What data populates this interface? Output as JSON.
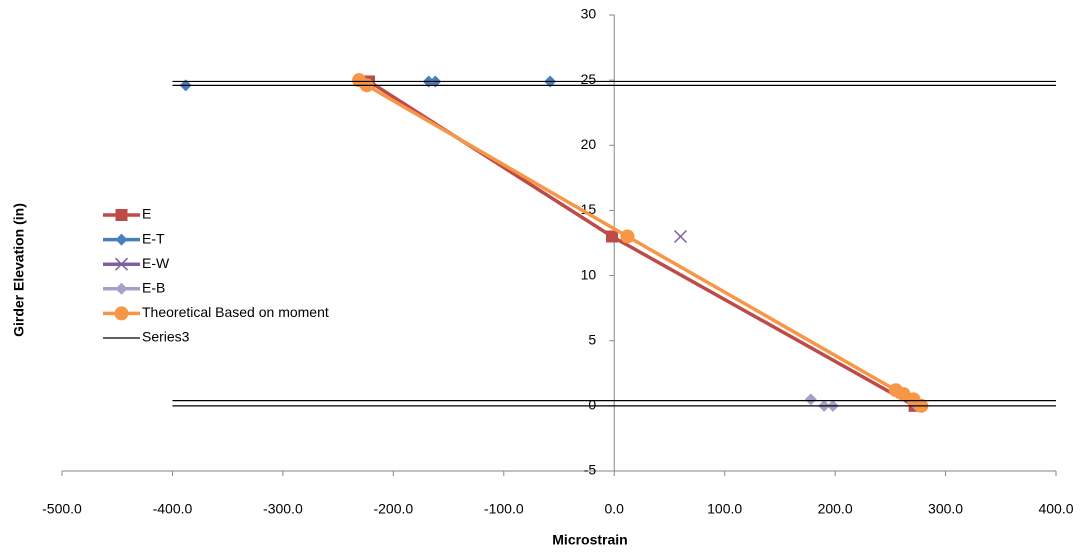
{
  "chart_data": {
    "type": "scatter",
    "x_label": "Microstrain",
    "y_label": "Girder Elevation (in)",
    "xlim": [
      -500,
      400
    ],
    "xticks": [
      {
        "value": -500,
        "label": "-500.0"
      },
      {
        "value": -400,
        "label": "-400.0"
      },
      {
        "value": -300,
        "label": "-300.0"
      },
      {
        "value": -200,
        "label": "-200.0"
      },
      {
        "value": -100,
        "label": "-100.0"
      },
      {
        "value": 0,
        "label": "0.0"
      },
      {
        "value": 100,
        "label": "100.0"
      },
      {
        "value": 200,
        "label": "200.0"
      },
      {
        "value": 300,
        "label": "300.0"
      },
      {
        "value": 400,
        "label": "400.0"
      }
    ],
    "ylim": [
      -5,
      30
    ],
    "yticks": [
      -5,
      0,
      5,
      10,
      15,
      20,
      25,
      30
    ],
    "legend": "left",
    "series": [
      {
        "name": "E",
        "color": "#be4b48",
        "marker": "square",
        "line": true,
        "x": [
          -222,
          -2,
          272
        ],
        "values": [
          24.9,
          13,
          0
        ]
      },
      {
        "name": "E-T",
        "color": "#4a7ebb",
        "marker": "diamond",
        "line": false,
        "x": [
          -388,
          -168,
          -162,
          -58
        ],
        "values": [
          24.6,
          24.9,
          24.9,
          24.9
        ]
      },
      {
        "name": "E-W",
        "color": "#7d60a0",
        "marker": "x",
        "line": false,
        "x": [
          60
        ],
        "values": [
          13
        ]
      },
      {
        "name": "E-B",
        "color": "#a5a0c8",
        "marker": "diamond",
        "line": false,
        "x": [
          178,
          190,
          198,
          274
        ],
        "values": [
          0.5,
          0,
          0,
          0
        ]
      },
      {
        "name": "Theoretical Based on moment",
        "color": "#f79646",
        "marker": "circle",
        "line": true,
        "x": [
          -231,
          -224,
          12,
          255,
          262,
          271,
          278
        ],
        "values": [
          25,
          24.6,
          13,
          1.2,
          0.9,
          0.5,
          0
        ]
      },
      {
        "name": "Series3",
        "color": "#000000",
        "marker": "none",
        "line": true,
        "x": [
          -400,
          400,
          null,
          -400,
          400,
          null,
          -400,
          400,
          null,
          -400,
          400
        ],
        "values": [
          24.9,
          24.9,
          null,
          24.6,
          24.6,
          null,
          0.4,
          0.4,
          null,
          0,
          0
        ]
      }
    ]
  }
}
